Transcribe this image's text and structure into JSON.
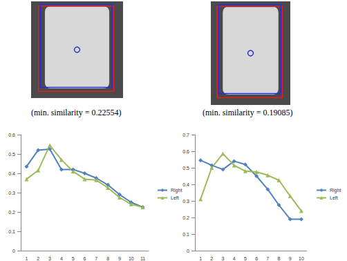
{
  "chart_data": [
    {
      "type": "line",
      "title": "(min. similarity = 0.22554)",
      "categories": [
        "1",
        "2",
        "3",
        "4",
        "5",
        "6",
        "7",
        "8",
        "9",
        "10",
        "11"
      ],
      "series": [
        {
          "name": "Right",
          "color": "#4f81bd",
          "marker": "diamond",
          "values": [
            0.435,
            0.52,
            0.525,
            0.42,
            0.42,
            0.4,
            0.375,
            0.34,
            0.29,
            0.25,
            0.225
          ]
        },
        {
          "name": "Left",
          "color": "#9bbb59",
          "marker": "triangle",
          "values": [
            0.37,
            0.415,
            0.545,
            0.47,
            0.41,
            0.37,
            0.365,
            0.325,
            0.275,
            0.24,
            0.225
          ]
        }
      ],
      "ylim": [
        0,
        0.6
      ],
      "yticks": [
        0,
        0.1,
        0.2,
        0.3,
        0.4,
        0.5,
        0.6
      ],
      "grid": false,
      "legend": "right"
    },
    {
      "type": "line",
      "title": "(min. similarity = 0.19085)",
      "categories": [
        "1",
        "2",
        "3",
        "4",
        "5",
        "6",
        "7",
        "8",
        "9",
        "10"
      ],
      "series": [
        {
          "name": "Right",
          "color": "#4f81bd",
          "marker": "diamond",
          "values": [
            0.545,
            0.515,
            0.49,
            0.54,
            0.52,
            0.45,
            0.37,
            0.275,
            0.19,
            0.19
          ]
        },
        {
          "name": "Left",
          "color": "#9bbb59",
          "marker": "triangle",
          "values": [
            0.31,
            0.5,
            0.585,
            0.515,
            0.48,
            0.475,
            0.455,
            0.425,
            0.33,
            0.24
          ]
        }
      ],
      "ylim": [
        0,
        0.7
      ],
      "yticks": [
        0,
        0.1,
        0.2,
        0.3,
        0.4,
        0.5,
        0.6,
        0.7
      ],
      "grid": false,
      "legend": "right"
    }
  ]
}
